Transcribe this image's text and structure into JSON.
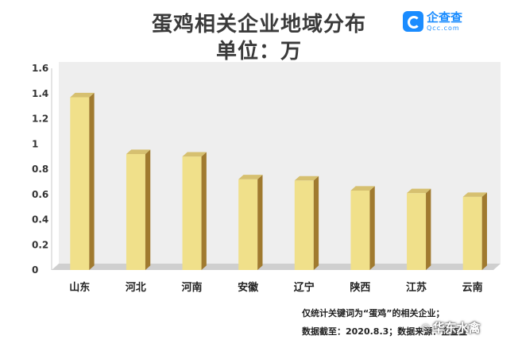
{
  "header": {
    "title": "蛋鸡相关企业地域分布",
    "unit": "单位：万",
    "logo_name": "企查查",
    "logo_url": "Qcc.com"
  },
  "chart_data": {
    "type": "bar",
    "title": "蛋鸡相关企业地域分布",
    "subtitle": "单位：万",
    "categories": [
      "山东",
      "河北",
      "河南",
      "安徽",
      "辽宁",
      "陕西",
      "江苏",
      "云南"
    ],
    "values": [
      1.37,
      0.92,
      0.9,
      0.72,
      0.71,
      0.63,
      0.61,
      0.58
    ],
    "ylim": [
      0,
      1.6
    ],
    "yticks": [
      "0",
      "0.2",
      "0.4",
      "0.6",
      "0.8",
      "1",
      "1.2",
      "1.4",
      "1.6"
    ],
    "grid": false,
    "colors": {
      "bar_front": "#f0e08a",
      "bar_side": "#a07a2f",
      "bar_top": "#d6c070",
      "wall": "#eeeeee",
      "floor": "#cfcfcf"
    }
  },
  "footer": {
    "note1": "仅统计关键词为“蛋鸡”的相关企业；",
    "note2": "数据截至：2020.8.3；数据来源：企查查",
    "watermark": "华东水禽",
    "watermark_icon": "wechat-icon"
  }
}
